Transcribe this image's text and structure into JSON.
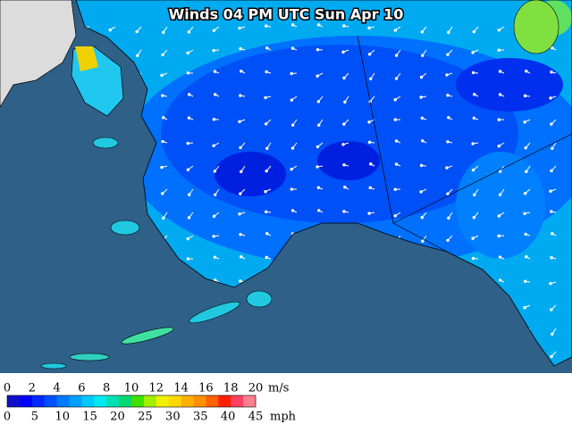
{
  "map": {
    "title": "Winds 04 PM UTC Sun Apr 10",
    "legend": {
      "ms_labels": [
        0,
        2,
        4,
        6,
        8,
        10,
        12,
        14,
        16,
        18,
        20
      ],
      "ms_unit": "m/s",
      "mph_labels": [
        0,
        5,
        10,
        15,
        20,
        25,
        30,
        35,
        40,
        45
      ],
      "mph_unit": "mph",
      "colors": [
        "#1010c8",
        "#0000ff",
        "#0028ff",
        "#0050ff",
        "#0078ff",
        "#00a0ff",
        "#00c8ff",
        "#00e8f0",
        "#00e0b0",
        "#00d870",
        "#40e000",
        "#a0f000",
        "#f0f000",
        "#ffd800",
        "#ffb000",
        "#ff9000",
        "#ff6000",
        "#ff2000",
        "#ff4060",
        "#ff8090"
      ]
    }
  }
}
